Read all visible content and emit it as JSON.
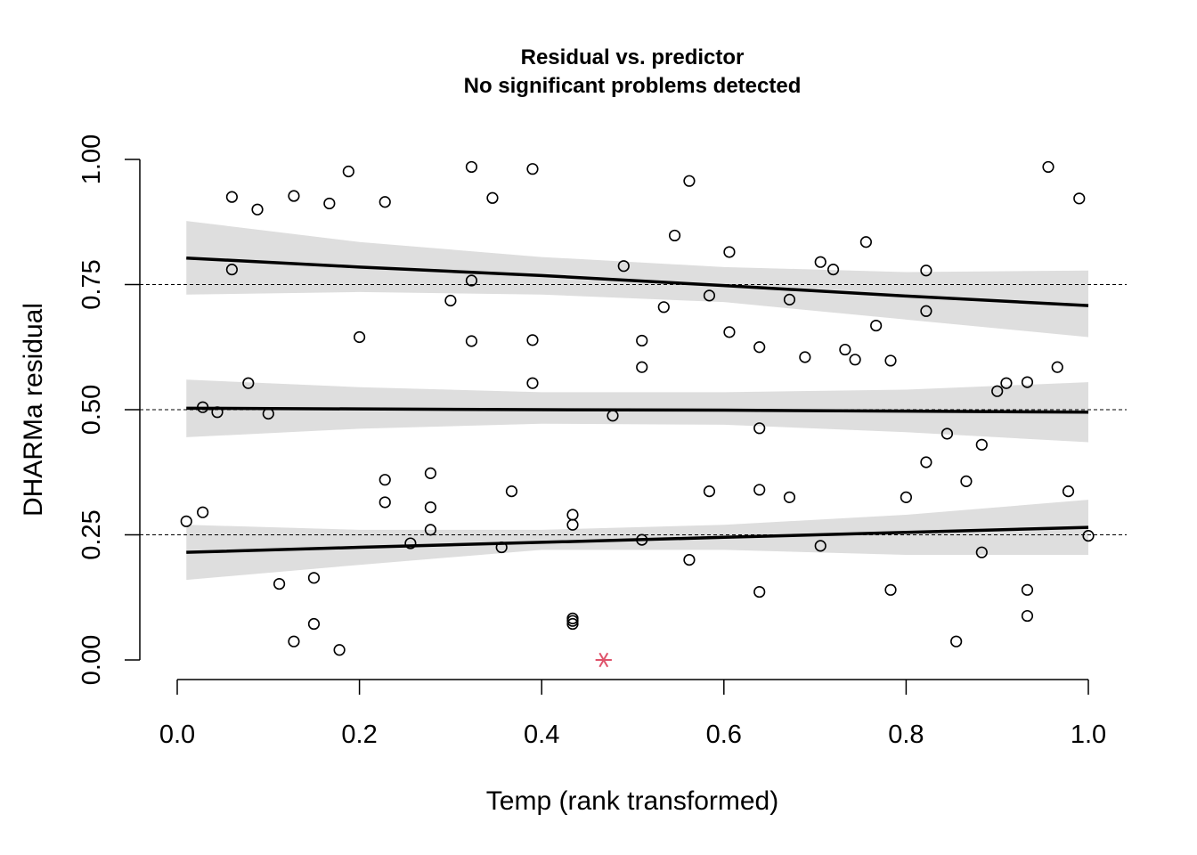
{
  "chart_data": {
    "type": "scatter",
    "title": "Residual vs. predictor",
    "subtitle": "No significant problems detected",
    "xlabel": "Temp (rank transformed)",
    "ylabel": "DHARMa residual",
    "xlim": [
      0,
      1
    ],
    "ylim": [
      0,
      1
    ],
    "x_ticks": [
      "0.0",
      "0.2",
      "0.4",
      "0.6",
      "0.8",
      "1.0"
    ],
    "y_ticks": [
      "0.00",
      "0.25",
      "0.50",
      "0.75",
      "1.00"
    ],
    "reference_lines": [
      0.25,
      0.5,
      0.75
    ],
    "colors": {
      "points": "#000000",
      "outlier": "#DF536B",
      "band": "#DEDEDE",
      "lines": "#000000"
    },
    "quantile_fits": [
      {
        "quantile": 0.25,
        "x": [
          0.01,
          0.2,
          0.4,
          0.6,
          0.8,
          1.0
        ],
        "y": [
          0.215,
          0.225,
          0.235,
          0.245,
          0.255,
          0.265
        ],
        "lower": [
          0.16,
          0.19,
          0.22,
          0.22,
          0.21,
          0.21
        ],
        "upper": [
          0.27,
          0.26,
          0.26,
          0.27,
          0.29,
          0.32
        ]
      },
      {
        "quantile": 0.5,
        "x": [
          0.01,
          0.2,
          0.4,
          0.6,
          0.8,
          1.0
        ],
        "y": [
          0.503,
          0.5015,
          0.5,
          0.499,
          0.497,
          0.495
        ],
        "lower": [
          0.445,
          0.462,
          0.472,
          0.47,
          0.455,
          0.435
        ],
        "upper": [
          0.56,
          0.545,
          0.535,
          0.535,
          0.54,
          0.555
        ]
      },
      {
        "quantile": 0.75,
        "x": [
          0.01,
          0.2,
          0.4,
          0.6,
          0.8,
          1.0
        ],
        "y": [
          0.803,
          0.785,
          0.768,
          0.748,
          0.727,
          0.708
        ],
        "lower": [
          0.73,
          0.735,
          0.73,
          0.715,
          0.68,
          0.645
        ],
        "upper": [
          0.877,
          0.835,
          0.805,
          0.785,
          0.775,
          0.778
        ]
      }
    ],
    "points": {
      "x": [
        0.06,
        0.088,
        0.128,
        0.167,
        0.188,
        0.228,
        0.323,
        0.346,
        0.39,
        0.562,
        0.06,
        0.323,
        0.49,
        0.546,
        0.606,
        0.706,
        0.72,
        0.756,
        0.822,
        0.956,
        0.99,
        0.3,
        0.2,
        0.323,
        0.39,
        0.534,
        0.584,
        0.606,
        0.639,
        0.672,
        0.689,
        0.733,
        0.744,
        0.767,
        0.783,
        0.822,
        0.51,
        0.51,
        0.39,
        0.078,
        0.028,
        0.044,
        0.1,
        0.478,
        0.639,
        0.9,
        0.91,
        0.933,
        0.966,
        0.845,
        0.883,
        0.822,
        0.866,
        0.978,
        0.8,
        0.228,
        0.228,
        0.278,
        0.278,
        0.278,
        0.367,
        0.434,
        0.434,
        0.584,
        0.639,
        0.672,
        0.256,
        0.356,
        0.51,
        0.706,
        0.562,
        0.883,
        1.0,
        0.01,
        0.028,
        0.112,
        0.15,
        0.639,
        0.783,
        0.933,
        0.434,
        0.434,
        0.434,
        0.933,
        0.15,
        0.128,
        0.178,
        0.855
      ],
      "y": [
        0.925,
        0.9,
        0.927,
        0.912,
        0.976,
        0.915,
        0.985,
        0.923,
        0.981,
        0.957,
        0.78,
        0.758,
        0.787,
        0.848,
        0.815,
        0.795,
        0.78,
        0.835,
        0.778,
        0.985,
        0.922,
        0.718,
        0.645,
        0.637,
        0.639,
        0.705,
        0.728,
        0.655,
        0.625,
        0.72,
        0.605,
        0.62,
        0.6,
        0.668,
        0.598,
        0.697,
        0.638,
        0.585,
        0.553,
        0.553,
        0.505,
        0.495,
        0.492,
        0.488,
        0.463,
        0.537,
        0.553,
        0.555,
        0.585,
        0.452,
        0.43,
        0.395,
        0.357,
        0.337,
        0.325,
        0.36,
        0.315,
        0.373,
        0.305,
        0.26,
        0.337,
        0.29,
        0.27,
        0.337,
        0.34,
        0.325,
        0.233,
        0.225,
        0.24,
        0.228,
        0.2,
        0.215,
        0.248,
        0.277,
        0.295,
        0.152,
        0.164,
        0.136,
        0.14,
        0.14,
        0.083,
        0.078,
        0.072,
        0.088,
        0.072,
        0.037,
        0.02,
        0.037
      ]
    },
    "outliers": {
      "x": [
        0.468
      ],
      "y": [
        0.0
      ]
    }
  }
}
